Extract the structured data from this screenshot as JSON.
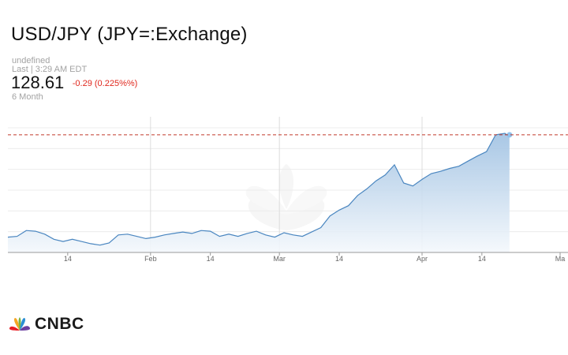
{
  "header": {
    "title": "USD/JPY (JPY=:Exchange)",
    "source_line": "undefined",
    "last_line": "Last | 3:29 AM EDT",
    "price": "128.61",
    "change": "-0.29 (0.225%%)",
    "period": "6 Month"
  },
  "colors": {
    "line": "#4a86c0",
    "area_top": "#9fc1e2",
    "area_bottom": "#f4f8fc",
    "reference_line": "#c0392b",
    "change_negative": "#e0281e"
  },
  "brand": {
    "name": "CNBC"
  },
  "chart_data": {
    "type": "area",
    "title": "",
    "xlabel": "",
    "ylabel": "",
    "x_tick_labels": [
      "14",
      "Feb",
      "14",
      "Mar",
      "14",
      "Apr",
      "14",
      "Ma"
    ],
    "x": [
      "Jan 1",
      "Jan 3",
      "Jan 5",
      "Jan 7",
      "Jan 9",
      "Jan 11",
      "Jan 13",
      "Jan 15",
      "Jan 17",
      "Jan 19",
      "Jan 21",
      "Jan 23",
      "Jan 25",
      "Jan 27",
      "Jan 29",
      "Jan 31",
      "Feb 2",
      "Feb 4",
      "Feb 6",
      "Feb 8",
      "Feb 10",
      "Feb 12",
      "Feb 14",
      "Feb 16",
      "Feb 18",
      "Feb 20",
      "Feb 22",
      "Feb 24",
      "Feb 26",
      "Feb 28",
      "Mar 2",
      "Mar 4",
      "Mar 6",
      "Mar 8",
      "Mar 10",
      "Mar 12",
      "Mar 14",
      "Mar 16",
      "Mar 18",
      "Mar 20",
      "Mar 22",
      "Mar 24",
      "Mar 26",
      "Mar 28",
      "Mar 30",
      "Apr 1",
      "Apr 3",
      "Apr 5",
      "Apr 7",
      "Apr 9",
      "Apr 11",
      "Apr 13",
      "Apr 15",
      "Apr 17",
      "Apr 19",
      "Apr 20"
    ],
    "y": [
      114.9,
      115.0,
      115.8,
      115.7,
      115.3,
      114.6,
      114.3,
      114.6,
      114.3,
      114.0,
      113.8,
      114.1,
      115.2,
      115.3,
      115.0,
      114.7,
      114.9,
      115.2,
      115.4,
      115.6,
      115.4,
      115.8,
      115.7,
      115.0,
      115.3,
      115.0,
      115.4,
      115.7,
      115.2,
      114.9,
      115.5,
      115.2,
      115.0,
      115.6,
      116.2,
      117.8,
      118.6,
      119.2,
      120.6,
      121.5,
      122.6,
      123.4,
      124.8,
      122.3,
      121.9,
      122.8,
      123.6,
      123.9,
      124.3,
      124.6,
      125.3,
      126.0,
      126.6,
      128.9,
      129.1,
      128.61
    ],
    "y_gridlines": 6,
    "reference_line_value": 128.9,
    "grid": true,
    "legend": "none"
  }
}
